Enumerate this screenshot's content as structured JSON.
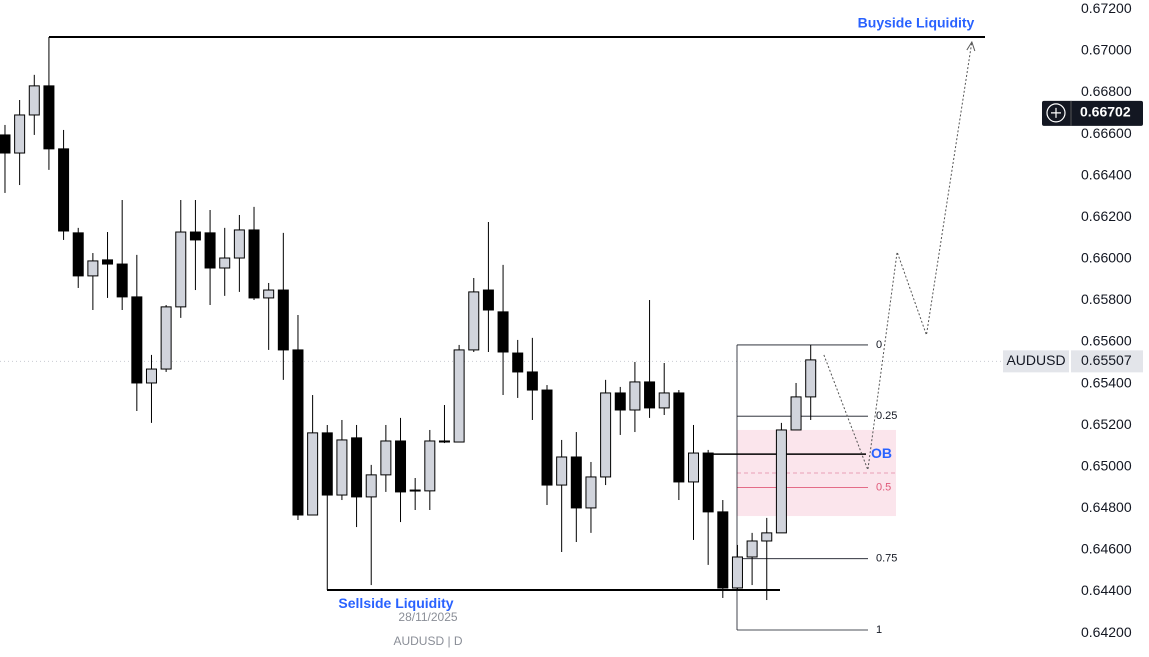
{
  "chart_data": {
    "type": "candlestick",
    "symbol": "AUDUSD",
    "footer": "AUDUSD | D",
    "crosshair": {
      "date": "28/11/2025",
      "price": {
        "value": 0.66702,
        "label": "0.66702"
      }
    },
    "last_price": {
      "value": 0.65507,
      "label": "0.65507"
    },
    "xlim": [
      -0.34,
      72.7
    ],
    "ylim": [
      0.64085,
      0.67245
    ],
    "yticks": [
      {
        "value": 0.642,
        "label": "0.64200"
      },
      {
        "value": 0.644,
        "label": "0.64400"
      },
      {
        "value": 0.646,
        "label": "0.64600"
      },
      {
        "value": 0.648,
        "label": "0.64800"
      },
      {
        "value": 0.65,
        "label": "0.65000"
      },
      {
        "value": 0.652,
        "label": "0.65200"
      },
      {
        "value": 0.654,
        "label": "0.65400"
      },
      {
        "value": 0.656,
        "label": "0.65600"
      },
      {
        "value": 0.658,
        "label": "0.65800"
      },
      {
        "value": 0.66,
        "label": "0.66000"
      },
      {
        "value": 0.662,
        "label": "0.66200"
      },
      {
        "value": 0.664,
        "label": "0.66400"
      },
      {
        "value": 0.666,
        "label": "0.66600"
      },
      {
        "value": 0.668,
        "label": "0.66800"
      },
      {
        "value": 0.67,
        "label": "0.67000"
      },
      {
        "value": 0.672,
        "label": "0.67200"
      }
    ],
    "up_color": "#d1d4dc",
    "down_color": "#000000",
    "open": [
      0.66596,
      0.66509,
      0.66692,
      0.66832,
      0.66529,
      0.66125,
      0.65918,
      0.65995,
      0.65975,
      0.65817,
      0.65403,
      0.6547,
      0.65769,
      0.66129,
      0.66125,
      0.65956,
      0.66004,
      0.66139,
      0.65812,
      0.6585,
      0.65562,
      0.64768,
      0.65163,
      0.64864,
      0.65139,
      0.64855,
      0.64961,
      0.65124,
      0.64888,
      0.64884,
      0.65124,
      0.65119,
      0.65562,
      0.6585,
      0.65745,
      0.65547,
      0.65456,
      0.65369,
      0.64912,
      0.65047,
      0.64802,
      0.64951,
      0.65355,
      0.65273,
      0.65408,
      0.65283,
      0.65355,
      0.64927,
      0.65066,
      0.64783,
      0.64417,
      0.64566,
      0.64643,
      0.64682,
      0.65177,
      0.65336
    ],
    "high": [
      0.66644,
      0.66764,
      0.66885,
      0.67067,
      0.6662,
      0.66149,
      0.66028,
      0.66129,
      0.66283,
      0.66019,
      0.65538,
      0.65778,
      0.66283,
      0.66283,
      0.66235,
      0.66149,
      0.66211,
      0.6625,
      0.65884,
      0.66125,
      0.6573,
      0.65345,
      0.65201,
      0.65225,
      0.65201,
      0.65009,
      0.65201,
      0.65235,
      0.64946,
      0.65177,
      0.65297,
      0.65586,
      0.65908,
      0.66177,
      0.65971,
      0.6561,
      0.6562,
      0.65393,
      0.65129,
      0.65167,
      0.65023,
      0.65418,
      0.65384,
      0.65504,
      0.65802,
      0.65499,
      0.65369,
      0.65201,
      0.65081,
      0.6484,
      0.64624,
      0.64682,
      0.64754,
      0.65211,
      0.65403,
      0.65586
    ],
    "low": [
      0.66317,
      0.66355,
      0.66596,
      0.66428,
      0.66091,
      0.6586,
      0.65754,
      0.65812,
      0.65754,
      0.65268,
      0.65211,
      0.65456,
      0.65716,
      0.6585,
      0.65778,
      0.65822,
      0.65841,
      0.65802,
      0.65562,
      0.65418,
      0.64744,
      0.64768,
      0.64407,
      0.6484,
      0.6471,
      0.64431,
      0.64879,
      0.64734,
      0.64792,
      0.64792,
      0.65114,
      0.65119,
      0.65552,
      0.65552,
      0.65345,
      0.65331,
      0.65225,
      0.64816,
      0.6459,
      0.64638,
      0.64682,
      0.64912,
      0.65153,
      0.65167,
      0.65235,
      0.65249,
      0.6484,
      0.64648,
      0.64528,
      0.64369,
      0.64407,
      0.64431,
      0.64359,
      0.64682,
      0.65177,
      0.65225
    ],
    "close": [
      0.66509,
      0.66692,
      0.66832,
      0.66529,
      0.66134,
      0.65918,
      0.6599,
      0.65975,
      0.65817,
      0.65403,
      0.6547,
      0.65769,
      0.66129,
      0.66091,
      0.65956,
      0.66004,
      0.66139,
      0.65812,
      0.6585,
      0.65562,
      0.64768,
      0.65163,
      0.64864,
      0.65129,
      0.64855,
      0.64961,
      0.65124,
      0.64879,
      0.64884,
      0.65124,
      0.65119,
      0.65562,
      0.65841,
      0.65754,
      0.65552,
      0.65456,
      0.65369,
      0.64912,
      0.65047,
      0.64802,
      0.64951,
      0.65355,
      0.65273,
      0.65408,
      0.65283,
      0.65355,
      0.64927,
      0.65066,
      0.64783,
      0.64417,
      0.64566,
      0.64643,
      0.64682,
      0.65177,
      0.65336,
      0.65514
    ],
    "liquidity": [
      {
        "label": "Buyside Liquidity",
        "price": 0.67067
      },
      {
        "label": "Sellside Liquidity",
        "price": 0.64407
      }
    ],
    "order_block": {
      "label": "OB",
      "top": 0.65177,
      "bottom": 0.64763,
      "line": 0.65061
    },
    "fib": {
      "high": 0.65586,
      "low": 0.64215,
      "levels": [
        0,
        0.25,
        0.5,
        0.75,
        1
      ]
    },
    "projection": {
      "x": [
        55.9,
        58.9,
        60.9,
        62.9,
        66.0
      ],
      "price": [
        0.65538,
        0.64985,
        0.66033,
        0.65634,
        0.67043
      ]
    }
  }
}
